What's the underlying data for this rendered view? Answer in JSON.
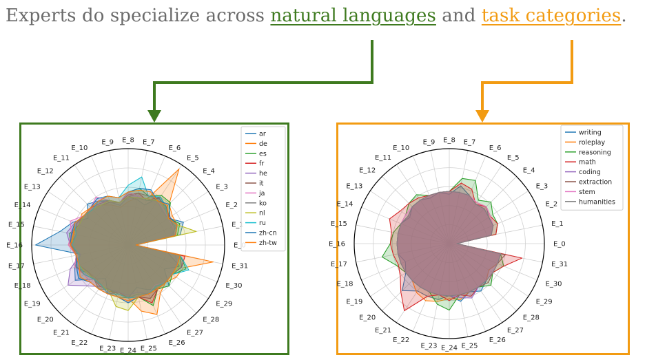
{
  "headline": {
    "prefix": "Experts do specialize across ",
    "lang_text": "natural languages",
    "middle": " and ",
    "task_text": "task categories",
    "suffix": ".",
    "lang_color": "#3e7a1f",
    "task_color": "#f29b12"
  },
  "chart_data": [
    {
      "type": "radar",
      "border_color": "#3e7a1f",
      "legend_position": "top-right",
      "grid": true,
      "axes": [
        "E_0",
        "E_1",
        "E_2",
        "E_3",
        "E_4",
        "E_5",
        "E_6",
        "E_7",
        "E_8",
        "E_9",
        "E_10",
        "E_11",
        "E_12",
        "E_13",
        "E_14",
        "E_15",
        "E_16",
        "E_17",
        "E_18",
        "E_19",
        "E_20",
        "E_21",
        "E_22",
        "E_23",
        "E_24",
        "E_25",
        "E_26",
        "E_27",
        "E_28",
        "E_29",
        "E_30",
        "E_31"
      ],
      "rmax": 1,
      "series": [
        {
          "name": "ar",
          "color": "#1f77b4",
          "values": [
            0.08,
            0.55,
            0.62,
            0.5,
            0.56,
            0.6,
            0.45,
            0.48,
            0.5,
            0.42,
            0.48,
            0.55,
            0.6,
            0.5,
            0.62,
            0.72,
            0.96,
            0.5,
            0.6,
            0.66,
            0.5,
            0.42,
            0.55,
            0.5,
            0.55,
            0.45,
            0.5,
            0.55,
            0.6,
            0.45,
            0.58,
            0.42
          ]
        },
        {
          "name": "de",
          "color": "#ff7f0e",
          "values": [
            0.08,
            0.5,
            0.55,
            0.55,
            0.6,
            0.95,
            0.52,
            0.5,
            0.45,
            0.4,
            0.45,
            0.5,
            0.55,
            0.58,
            0.55,
            0.6,
            0.62,
            0.55,
            0.6,
            0.5,
            0.48,
            0.5,
            0.52,
            0.5,
            0.55,
            0.7,
            0.78,
            0.6,
            0.55,
            0.6,
            0.62,
            0.9
          ]
        },
        {
          "name": "es",
          "color": "#2ca02c",
          "values": [
            0.08,
            0.52,
            0.58,
            0.5,
            0.62,
            0.62,
            0.55,
            0.6,
            0.55,
            0.45,
            0.48,
            0.5,
            0.52,
            0.55,
            0.55,
            0.62,
            0.6,
            0.55,
            0.6,
            0.52,
            0.5,
            0.55,
            0.5,
            0.55,
            0.55,
            0.55,
            0.68,
            0.55,
            0.6,
            0.55,
            0.65,
            0.55
          ]
        },
        {
          "name": "fr",
          "color": "#d62728",
          "values": [
            0.08,
            0.5,
            0.5,
            0.52,
            0.55,
            0.6,
            0.5,
            0.55,
            0.52,
            0.45,
            0.5,
            0.52,
            0.55,
            0.55,
            0.58,
            0.55,
            0.6,
            0.55,
            0.55,
            0.52,
            0.5,
            0.5,
            0.55,
            0.5,
            0.55,
            0.55,
            0.65,
            0.55,
            0.55,
            0.55,
            0.6,
            0.6
          ]
        },
        {
          "name": "he",
          "color": "#9467bd",
          "values": [
            0.08,
            0.45,
            0.55,
            0.5,
            0.5,
            0.55,
            0.5,
            0.52,
            0.55,
            0.45,
            0.5,
            0.55,
            0.55,
            0.55,
            0.6,
            0.65,
            0.6,
            0.5,
            0.65,
            0.75,
            0.6,
            0.52,
            0.5,
            0.5,
            0.52,
            0.5,
            0.55,
            0.5,
            0.55,
            0.55,
            0.55,
            0.5
          ]
        },
        {
          "name": "it",
          "color": "#8c564b",
          "values": [
            0.08,
            0.5,
            0.55,
            0.5,
            0.55,
            0.58,
            0.55,
            0.55,
            0.5,
            0.45,
            0.48,
            0.5,
            0.52,
            0.55,
            0.55,
            0.6,
            0.6,
            0.52,
            0.55,
            0.5,
            0.5,
            0.52,
            0.5,
            0.52,
            0.55,
            0.55,
            0.6,
            0.55,
            0.55,
            0.55,
            0.6,
            0.55
          ]
        },
        {
          "name": "ja",
          "color": "#e377c2",
          "values": [
            0.08,
            0.5,
            0.5,
            0.5,
            0.52,
            0.55,
            0.5,
            0.52,
            0.55,
            0.45,
            0.5,
            0.6,
            0.55,
            0.55,
            0.65,
            0.6,
            0.62,
            0.55,
            0.6,
            0.55,
            0.55,
            0.55,
            0.55,
            0.55,
            0.6,
            0.55,
            0.55,
            0.5,
            0.55,
            0.55,
            0.55,
            0.55
          ]
        },
        {
          "name": "ko",
          "color": "#7f7f7f",
          "values": [
            0.08,
            0.48,
            0.52,
            0.5,
            0.55,
            0.55,
            0.5,
            0.5,
            0.5,
            0.45,
            0.5,
            0.55,
            0.55,
            0.55,
            0.6,
            0.58,
            0.58,
            0.55,
            0.58,
            0.55,
            0.5,
            0.55,
            0.5,
            0.52,
            0.55,
            0.52,
            0.55,
            0.52,
            0.55,
            0.55,
            0.55,
            0.55
          ]
        },
        {
          "name": "nl",
          "color": "#bcbd22",
          "values": [
            0.08,
            0.72,
            0.55,
            0.5,
            0.55,
            0.55,
            0.52,
            0.5,
            0.5,
            0.45,
            0.5,
            0.5,
            0.52,
            0.55,
            0.55,
            0.58,
            0.58,
            0.52,
            0.55,
            0.52,
            0.5,
            0.5,
            0.52,
            0.65,
            0.68,
            0.55,
            0.55,
            0.55,
            0.55,
            0.55,
            0.58,
            0.55
          ]
        },
        {
          "name": "ru",
          "color": "#17becf",
          "values": [
            0.08,
            0.5,
            0.55,
            0.5,
            0.55,
            0.6,
            0.55,
            0.72,
            0.62,
            0.5,
            0.55,
            0.55,
            0.52,
            0.55,
            0.6,
            0.55,
            0.58,
            0.52,
            0.55,
            0.55,
            0.5,
            0.5,
            0.55,
            0.52,
            0.55,
            0.55,
            0.55,
            0.52,
            0.55,
            0.55,
            0.68,
            0.55
          ]
        },
        {
          "name": "zh-cn",
          "color": "#1f77b4",
          "values": [
            0.08,
            0.5,
            0.55,
            0.52,
            0.6,
            0.55,
            0.62,
            0.6,
            0.55,
            0.5,
            0.55,
            0.58,
            0.55,
            0.55,
            0.6,
            0.6,
            0.6,
            0.55,
            0.58,
            0.62,
            0.55,
            0.55,
            0.55,
            0.55,
            0.6,
            0.55,
            0.55,
            0.55,
            0.55,
            0.55,
            0.55,
            0.55
          ]
        },
        {
          "name": "zh-tw",
          "color": "#ff7f0e",
          "values": [
            0.08,
            0.5,
            0.55,
            0.5,
            0.58,
            0.55,
            0.6,
            0.58,
            0.55,
            0.5,
            0.55,
            0.55,
            0.55,
            0.55,
            0.6,
            0.58,
            0.6,
            0.55,
            0.55,
            0.6,
            0.55,
            0.55,
            0.55,
            0.55,
            0.58,
            0.55,
            0.55,
            0.55,
            0.55,
            0.55,
            0.55,
            0.55
          ]
        }
      ]
    },
    {
      "type": "radar",
      "border_color": "#f29b12",
      "legend_position": "top-right",
      "grid": true,
      "axes": [
        "E_0",
        "E_1",
        "E_2",
        "E_3",
        "E_4",
        "E_5",
        "E_6",
        "E_7",
        "E_8",
        "E_9",
        "E_10",
        "E_11",
        "E_12",
        "E_13",
        "E_14",
        "E_15",
        "E_16",
        "E_17",
        "E_18",
        "E_19",
        "E_20",
        "E_21",
        "E_22",
        "E_23",
        "E_24",
        "E_25",
        "E_26",
        "E_27",
        "E_28",
        "E_29",
        "E_30",
        "E_31"
      ],
      "rmax": 1,
      "series": [
        {
          "name": "writing",
          "color": "#1f77b4",
          "values": [
            0.08,
            0.45,
            0.5,
            0.5,
            0.55,
            0.5,
            0.55,
            0.62,
            0.52,
            0.55,
            0.52,
            0.55,
            0.55,
            0.5,
            0.55,
            0.55,
            0.55,
            0.55,
            0.5,
            0.55,
            0.7,
            0.6,
            0.6,
            0.6,
            0.55,
            0.62,
            0.55,
            0.6,
            0.55,
            0.5,
            0.55,
            0.55
          ]
        },
        {
          "name": "roleplay",
          "color": "#ff7f0e",
          "values": [
            0.08,
            0.45,
            0.5,
            0.52,
            0.55,
            0.52,
            0.55,
            0.55,
            0.55,
            0.55,
            0.55,
            0.55,
            0.55,
            0.52,
            0.55,
            0.55,
            0.55,
            0.55,
            0.55,
            0.55,
            0.55,
            0.62,
            0.65,
            0.62,
            0.58,
            0.6,
            0.55,
            0.55,
            0.55,
            0.5,
            0.55,
            0.55
          ]
        },
        {
          "name": "reasoning",
          "color": "#2ca02c",
          "values": [
            0.08,
            0.5,
            0.55,
            0.55,
            0.62,
            0.55,
            0.72,
            0.7,
            0.55,
            0.55,
            0.55,
            0.62,
            0.6,
            0.55,
            0.55,
            0.6,
            0.62,
            0.72,
            0.6,
            0.55,
            0.55,
            0.55,
            0.55,
            0.65,
            0.7,
            0.55,
            0.6,
            0.55,
            0.62,
            0.55,
            0.62,
            0.55
          ]
        },
        {
          "name": "math",
          "color": "#d62728",
          "values": [
            0.08,
            0.5,
            0.55,
            0.52,
            0.55,
            0.5,
            0.62,
            0.65,
            0.55,
            0.55,
            0.55,
            0.58,
            0.6,
            0.62,
            0.68,
            0.62,
            0.62,
            0.6,
            0.58,
            0.62,
            0.72,
            0.85,
            0.6,
            0.55,
            0.6,
            0.55,
            0.6,
            0.55,
            0.55,
            0.55,
            0.62,
            0.78
          ]
        },
        {
          "name": "coding",
          "color": "#9467bd",
          "values": [
            0.08,
            0.45,
            0.5,
            0.5,
            0.52,
            0.5,
            0.55,
            0.55,
            0.55,
            0.55,
            0.55,
            0.55,
            0.55,
            0.52,
            0.55,
            0.55,
            0.55,
            0.55,
            0.55,
            0.55,
            0.55,
            0.55,
            0.55,
            0.55,
            0.55,
            0.58,
            0.62,
            0.55,
            0.55,
            0.55,
            0.55,
            0.55
          ]
        },
        {
          "name": "extraction",
          "color": "#8c564b",
          "values": [
            0.08,
            0.45,
            0.5,
            0.5,
            0.52,
            0.5,
            0.55,
            0.55,
            0.55,
            0.55,
            0.55,
            0.55,
            0.55,
            0.52,
            0.55,
            0.55,
            0.55,
            0.55,
            0.55,
            0.55,
            0.55,
            0.55,
            0.55,
            0.55,
            0.55,
            0.55,
            0.55,
            0.55,
            0.58,
            0.55,
            0.55,
            0.6
          ]
        },
        {
          "name": "stem",
          "color": "#e377c2",
          "values": [
            0.08,
            0.45,
            0.5,
            0.52,
            0.55,
            0.52,
            0.55,
            0.55,
            0.55,
            0.55,
            0.55,
            0.55,
            0.55,
            0.55,
            0.55,
            0.55,
            0.55,
            0.55,
            0.55,
            0.55,
            0.55,
            0.55,
            0.55,
            0.55,
            0.55,
            0.55,
            0.55,
            0.55,
            0.55,
            0.55,
            0.55,
            0.55
          ]
        },
        {
          "name": "humanities",
          "color": "#7f7f7f",
          "values": [
            0.08,
            0.45,
            0.5,
            0.5,
            0.52,
            0.5,
            0.55,
            0.55,
            0.55,
            0.55,
            0.55,
            0.55,
            0.55,
            0.52,
            0.55,
            0.55,
            0.55,
            0.55,
            0.55,
            0.55,
            0.55,
            0.55,
            0.55,
            0.55,
            0.55,
            0.55,
            0.55,
            0.55,
            0.55,
            0.55,
            0.55,
            0.55
          ]
        }
      ]
    }
  ]
}
